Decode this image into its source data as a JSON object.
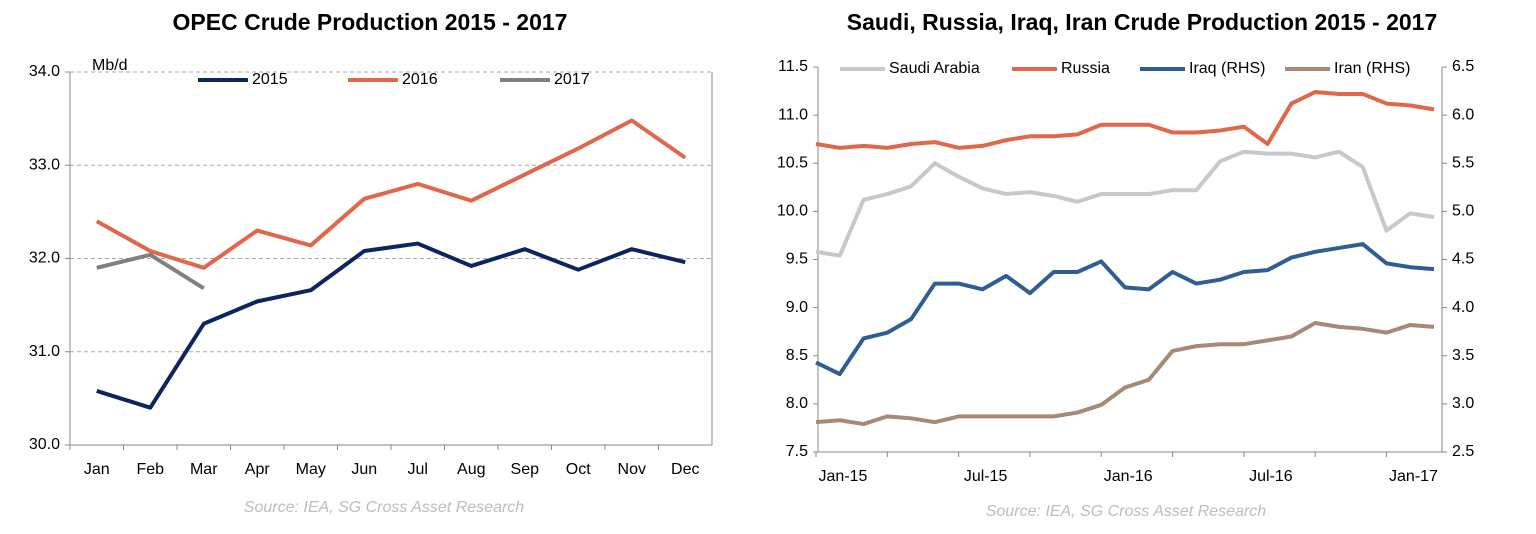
{
  "chart_data": [
    {
      "type": "line",
      "title": "OPEC Crude Production 2015 - 2017",
      "y_unit": "Mb/d",
      "source": "Source: IEA, SG Cross Asset Research",
      "categories": [
        "Jan",
        "Feb",
        "Mar",
        "Apr",
        "May",
        "Jun",
        "Jul",
        "Aug",
        "Sep",
        "Oct",
        "Nov",
        "Dec"
      ],
      "ylim": [
        30,
        34
      ],
      "yticks": [
        {
          "value": 30,
          "label": "30.0"
        },
        {
          "value": 31,
          "label": "31.0"
        },
        {
          "value": 32,
          "label": "32.0"
        },
        {
          "value": 33,
          "label": "33.0"
        },
        {
          "value": 34,
          "label": "34.0"
        }
      ],
      "grid": true,
      "series": [
        {
          "name": "2015",
          "color": "#0c2461",
          "values": [
            30.58,
            30.4,
            31.3,
            31.54,
            31.66,
            32.08,
            32.16,
            31.92,
            32.1,
            31.88,
            32.1,
            31.96
          ]
        },
        {
          "name": "2016",
          "color": "#e0674a",
          "values": [
            32.4,
            32.08,
            31.9,
            32.3,
            32.14,
            32.64,
            32.8,
            32.62,
            32.9,
            33.18,
            33.48,
            33.08
          ]
        },
        {
          "name": "2017",
          "color": "#808080",
          "values": [
            31.9,
            32.04,
            31.68,
            null,
            null,
            null,
            null,
            null,
            null,
            null,
            null,
            null
          ]
        }
      ]
    },
    {
      "type": "line",
      "title": "Saudi, Russia, Iraq, Iran Crude Production 2015 - 2017",
      "source": "Source: IEA, SG Cross Asset Research",
      "categories": [
        "Jan-15",
        null,
        null,
        null,
        null,
        null,
        "Jul-15",
        null,
        null,
        null,
        null,
        null,
        "Jan-16",
        null,
        null,
        null,
        null,
        null,
        "Jul-16",
        null,
        null,
        null,
        null,
        null,
        "Jan-17",
        null,
        null
      ],
      "ylim": [
        7.5,
        11.5
      ],
      "yticks": [
        7.5,
        {
          "value": 8,
          "label": "8.0"
        },
        8.5,
        {
          "value": 9,
          "label": "9.0"
        },
        9.5,
        {
          "value": 10,
          "label": "10.0"
        },
        10.5,
        {
          "value": 11,
          "label": "11.0"
        },
        11.5
      ],
      "y2lim": [
        2.5,
        6.5
      ],
      "y2ticks": [
        2.5,
        {
          "value": 3,
          "label": "3.0"
        },
        3.5,
        {
          "value": 4,
          "label": "4.0"
        },
        4.5,
        {
          "value": 5,
          "label": "5.0"
        },
        5.5,
        {
          "value": 6,
          "label": "6.0"
        },
        6.5
      ],
      "grid": false,
      "series": [
        {
          "name": "Saudi Arabia",
          "color": "#c8c8cc",
          "values": [
            9.58,
            9.54,
            10.12,
            10.18,
            10.26,
            10.5,
            10.36,
            10.24,
            10.18,
            10.2,
            10.16,
            10.1,
            10.18,
            10.18,
            10.18,
            10.22,
            10.22,
            10.52,
            10.62,
            10.6,
            10.6,
            10.56,
            10.62,
            10.46,
            9.8,
            9.98,
            9.94
          ]
        },
        {
          "name": "Russia",
          "color": "#e0674a",
          "values": [
            10.7,
            10.66,
            10.68,
            10.66,
            10.7,
            10.72,
            10.66,
            10.68,
            10.74,
            10.78,
            10.78,
            10.8,
            10.9,
            10.9,
            10.9,
            10.82,
            10.82,
            10.84,
            10.88,
            10.7,
            11.12,
            11.24,
            11.22,
            11.22,
            11.12,
            11.1,
            11.06
          ]
        },
        {
          "name": "Iraq (RHS)",
          "color": "#2e5e94",
          "axis": "y2",
          "values": [
            3.43,
            3.31,
            3.68,
            3.74,
            3.88,
            4.25,
            4.25,
            4.19,
            4.33,
            4.15,
            4.37,
            4.37,
            4.48,
            4.21,
            4.19,
            4.37,
            4.25,
            4.29,
            4.37,
            4.39,
            4.52,
            4.58,
            4.62,
            4.66,
            4.46,
            4.42,
            4.4
          ]
        },
        {
          "name": "Iran (RHS)",
          "color": "#a88878",
          "axis": "y2",
          "values": [
            2.81,
            2.83,
            2.79,
            2.87,
            2.85,
            2.81,
            2.87,
            2.87,
            2.87,
            2.87,
            2.87,
            2.91,
            2.99,
            3.17,
            3.25,
            3.55,
            3.6,
            3.62,
            3.62,
            3.66,
            3.7,
            3.84,
            3.8,
            3.78,
            3.74,
            3.82,
            3.8
          ]
        }
      ]
    }
  ]
}
